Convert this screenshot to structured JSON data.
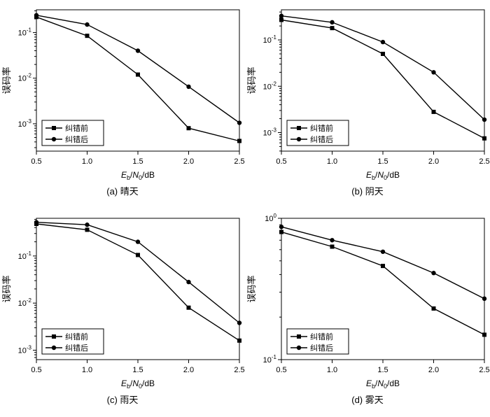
{
  "figure": {
    "background": "#ffffff",
    "line_color": "#000000"
  },
  "chart_data": [
    {
      "type": "line",
      "caption": "(a) 晴天",
      "ylabel": "误码率",
      "xlabel": "E_b/N_0/dB",
      "xlim": [
        0.5,
        2.5
      ],
      "xticks": [
        "0.5",
        "1.0",
        "1.5",
        "2.0",
        "2.5"
      ],
      "x": [
        0.5,
        1.0,
        1.5,
        2.0,
        2.5
      ],
      "ylog": {
        "min_exp": -3.6,
        "max_exp": -0.5,
        "label_exps": [
          -1,
          -2,
          -3
        ]
      },
      "legend_pos": "bottom-left",
      "series": [
        {
          "name": "纠错前",
          "marker": "square",
          "values": [
            0.22,
            0.085,
            0.012,
            0.0008,
            0.00042
          ]
        },
        {
          "name": "纠错后",
          "marker": "circle",
          "values": [
            0.24,
            0.15,
            0.04,
            0.0065,
            0.00105
          ]
        }
      ]
    },
    {
      "type": "line",
      "caption": "(b) 阴天",
      "ylabel": "误码率",
      "xlabel": "E_b/N_0/dB",
      "xlim": [
        0.5,
        2.5
      ],
      "xticks": [
        "0.5",
        "1.0",
        "1.5",
        "2.0",
        "2.5"
      ],
      "x": [
        0.5,
        1.0,
        1.5,
        2.0,
        2.5
      ],
      "ylog": {
        "min_exp": -3.4,
        "max_exp": -0.35,
        "label_exps": [
          -1,
          -2,
          -3
        ]
      },
      "legend_pos": "bottom-left",
      "series": [
        {
          "name": "纠错前",
          "marker": "square",
          "values": [
            0.27,
            0.18,
            0.05,
            0.0028,
            0.00075
          ]
        },
        {
          "name": "纠错后",
          "marker": "circle",
          "values": [
            0.33,
            0.24,
            0.09,
            0.02,
            0.0019
          ]
        }
      ]
    },
    {
      "type": "line",
      "caption": "(c) 雨天",
      "ylabel": "误码率",
      "xlabel": "E_b/N_0/dB",
      "xlim": [
        0.5,
        2.5
      ],
      "xticks": [
        "0.5",
        "1.0",
        "1.5",
        "2.0",
        "2.5"
      ],
      "x": [
        0.5,
        1.0,
        1.5,
        2.0,
        2.5
      ],
      "ylog": {
        "min_exp": -3.2,
        "max_exp": -0.2,
        "label_exps": [
          -1,
          -2,
          -3
        ]
      },
      "legend_pos": "bottom-left",
      "series": [
        {
          "name": "纠错前",
          "marker": "square",
          "values": [
            0.48,
            0.36,
            0.105,
            0.008,
            0.0016
          ]
        },
        {
          "name": "纠错后",
          "marker": "circle",
          "values": [
            0.52,
            0.46,
            0.2,
            0.028,
            0.0038
          ]
        }
      ]
    },
    {
      "type": "line",
      "caption": "(d) 雾天",
      "ylabel": "误码率",
      "xlabel": "E_b/N_0/dB",
      "xlim": [
        0.5,
        2.5
      ],
      "xticks": [
        "0.5",
        "1.0",
        "1.5",
        "2.0",
        "2.5"
      ],
      "x": [
        0.5,
        1.0,
        1.5,
        2.0,
        2.5
      ],
      "ylog": {
        "min_exp": -1,
        "max_exp": 0,
        "label_exps": [
          0,
          -1
        ]
      },
      "legend_pos": "bottom-left",
      "series": [
        {
          "name": "纠错前",
          "marker": "square",
          "values": [
            0.8,
            0.63,
            0.46,
            0.23,
            0.15
          ]
        },
        {
          "name": "纠错后",
          "marker": "circle",
          "values": [
            0.87,
            0.7,
            0.58,
            0.41,
            0.27
          ]
        }
      ]
    }
  ]
}
